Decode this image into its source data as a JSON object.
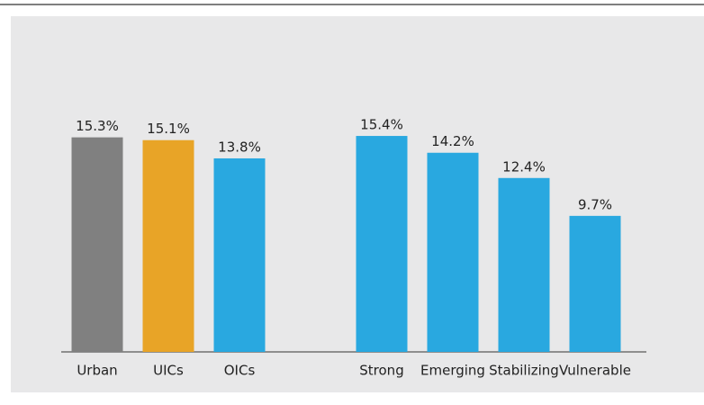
{
  "chart_data": {
    "type": "bar",
    "categories": [
      "Urban",
      "UICs",
      "OICs",
      null,
      "Strong",
      "Emerging",
      "Stabilizing",
      "Vulnerable"
    ],
    "values": [
      15.3,
      15.1,
      13.8,
      null,
      15.4,
      14.2,
      12.4,
      9.7
    ],
    "value_labels": [
      "15.3%",
      "15.1%",
      "13.8%",
      null,
      "15.4%",
      "14.2%",
      "12.4%",
      "9.7%"
    ],
    "colors": [
      "#808080",
      "#e8a427",
      "#29a8e0",
      null,
      "#29a8e0",
      "#29a8e0",
      "#29a8e0",
      "#29a8e0"
    ],
    "ylim": [
      0,
      16
    ]
  }
}
